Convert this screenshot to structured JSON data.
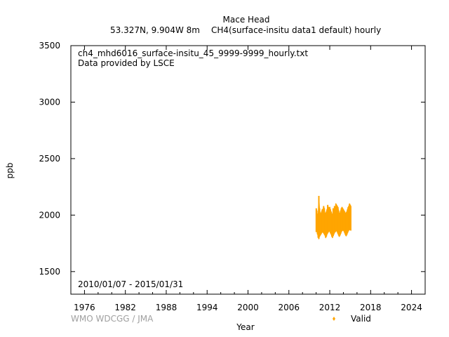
{
  "header": {
    "station": "Mace Head",
    "location": "53.327N, 9.904W 8m",
    "species": "CH4(surface-insitu data1 default) hourly"
  },
  "plot_text": {
    "filename": "ch4_mhd6016_surface-insitu_45_9999-9999_hourly.txt",
    "provider": "Data provided by LSCE",
    "date_range": "2010/01/07 - 2015/01/31"
  },
  "footer": {
    "credit": "WMO WDCGG / JMA"
  },
  "colors": {
    "valid": "#ffa500",
    "credit": "#a0a0a0"
  },
  "chart_data": {
    "type": "scatter",
    "title": "",
    "xlabel": "Year",
    "ylabel": "ppb",
    "xlim": [
      1974,
      2026
    ],
    "ylim": [
      1300,
      3500
    ],
    "xticks": [
      1976,
      1982,
      1988,
      1994,
      2000,
      2006,
      2012,
      2018,
      2024
    ],
    "yticks": [
      1500,
      2000,
      2500,
      3000,
      3500
    ],
    "legend_position": "bottom-right",
    "series": [
      {
        "name": "Valid",
        "color": "#ffa500",
        "marker": "diamond",
        "x": [
          2010.02,
          2010.1,
          2010.2,
          2010.3,
          2010.4,
          2010.5,
          2010.6,
          2010.7,
          2010.8,
          2010.9,
          2011.0,
          2011.1,
          2011.2,
          2011.3,
          2011.4,
          2011.5,
          2011.6,
          2011.7,
          2011.8,
          2011.9,
          2012.0,
          2012.1,
          2012.2,
          2012.3,
          2012.4,
          2012.5,
          2012.6,
          2012.7,
          2012.8,
          2012.9,
          2013.0,
          2013.1,
          2013.2,
          2013.3,
          2013.4,
          2013.5,
          2013.6,
          2013.7,
          2013.8,
          2013.9,
          2014.0,
          2014.1,
          2014.2,
          2014.3,
          2014.4,
          2014.5,
          2014.6,
          2014.7,
          2014.8,
          2014.9,
          2015.0,
          2015.08
        ],
        "ymin": [
          1850,
          1860,
          1830,
          1800,
          1790,
          1810,
          1820,
          1830,
          1840,
          1850,
          1850,
          1840,
          1830,
          1820,
          1800,
          1810,
          1830,
          1840,
          1850,
          1860,
          1855,
          1840,
          1830,
          1810,
          1800,
          1815,
          1830,
          1845,
          1850,
          1860,
          1860,
          1850,
          1835,
          1820,
          1810,
          1820,
          1835,
          1850,
          1860,
          1865,
          1865,
          1855,
          1840,
          1825,
          1815,
          1825,
          1840,
          1855,
          1865,
          1870,
          1870,
          1865
        ],
        "ymax": [
          2060,
          2040,
          2000,
          2010,
          2170,
          2060,
          2020,
          2000,
          2030,
          2050,
          2040,
          2080,
          2060,
          2020,
          2010,
          2030,
          2050,
          2090,
          2070,
          2060,
          2070,
          2050,
          2030,
          2010,
          2000,
          2060,
          2040,
          2080,
          2060,
          2100,
          2090,
          2080,
          2070,
          2040,
          2010,
          2020,
          2040,
          2060,
          2070,
          2060,
          2050,
          2040,
          2030,
          2010,
          2020,
          2030,
          2050,
          2070,
          2080,
          2100,
          2090,
          2080
        ],
        "ytypical": [
          1930,
          1940,
          1920,
          1900,
          1890,
          1905,
          1915,
          1925,
          1935,
          1945,
          1940,
          1935,
          1925,
          1910,
          1900,
          1910,
          1925,
          1935,
          1945,
          1950,
          1950,
          1940,
          1925,
          1910,
          1900,
          1910,
          1925,
          1940,
          1950,
          1955,
          1955,
          1945,
          1930,
          1915,
          1905,
          1915,
          1930,
          1945,
          1955,
          1960,
          1960,
          1950,
          1935,
          1920,
          1910,
          1920,
          1935,
          1950,
          1960,
          1965,
          1965,
          1960
        ]
      }
    ]
  }
}
